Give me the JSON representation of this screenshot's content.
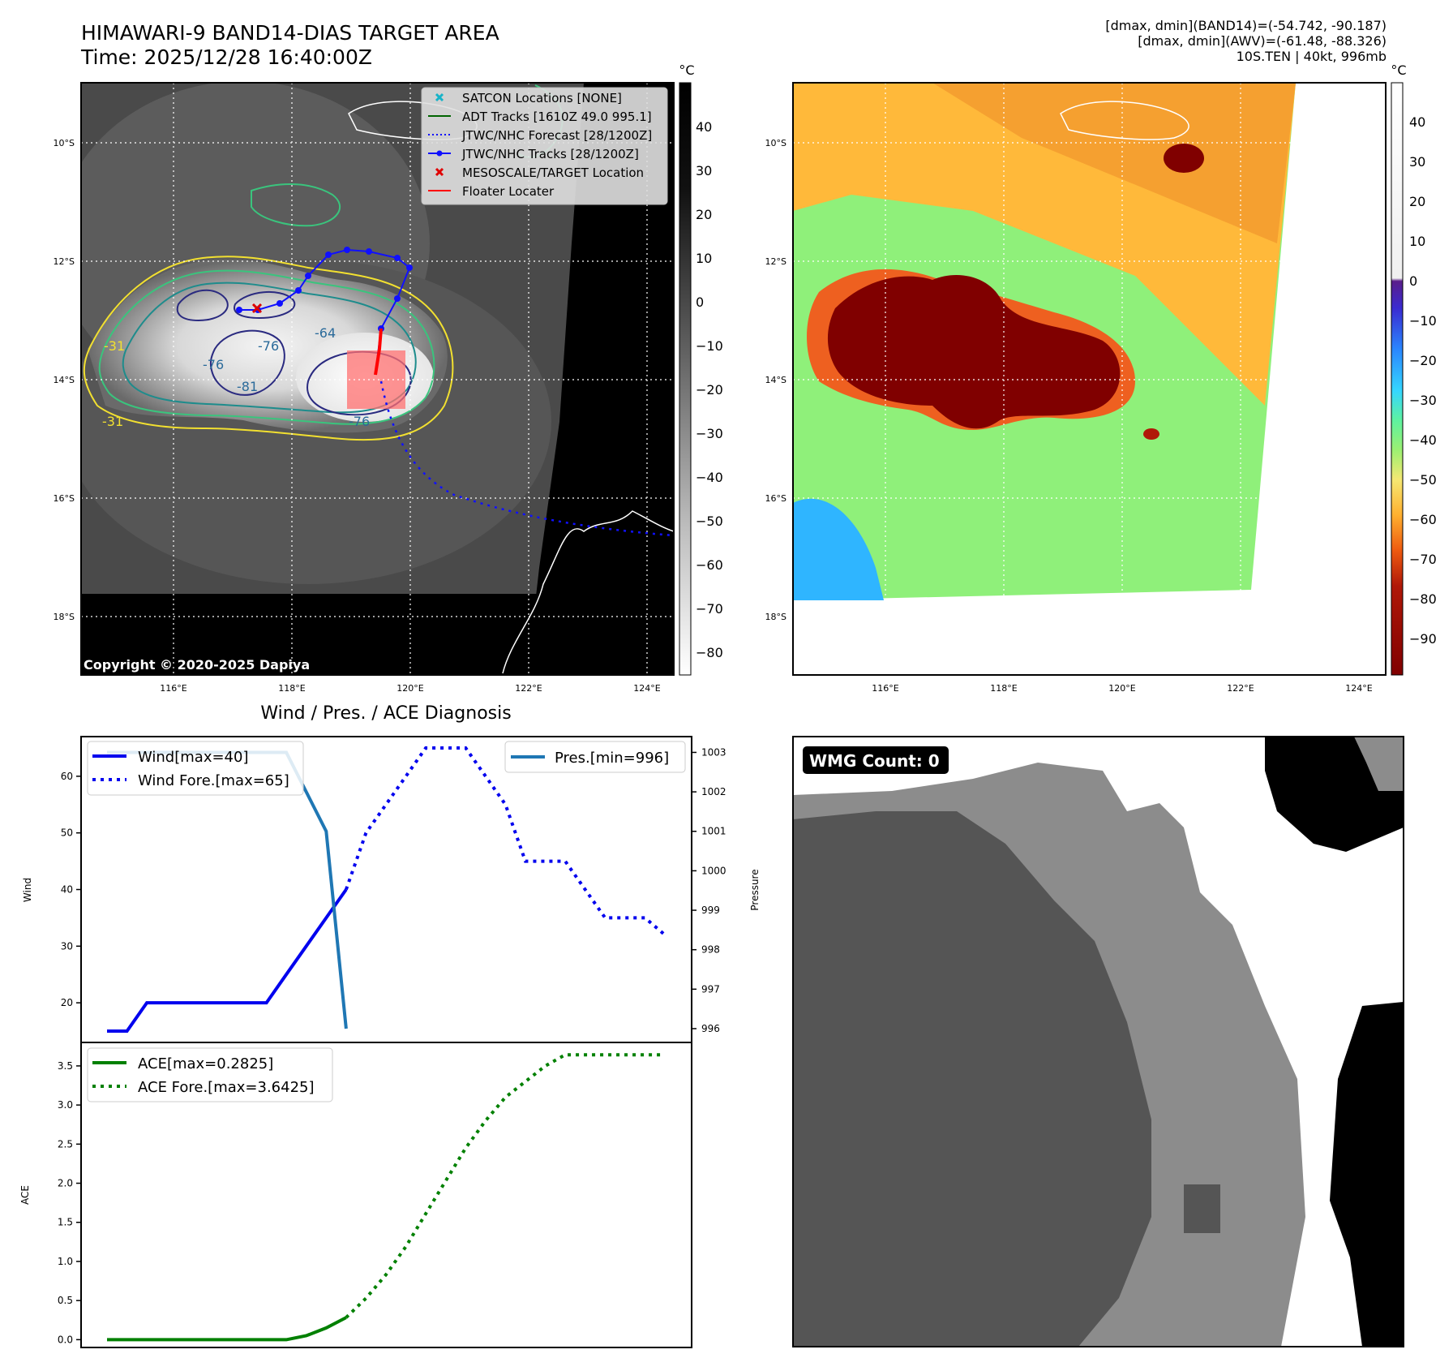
{
  "header": {
    "title_line1": "HIMAWARI-9 BAND14-DIAS TARGET AREA",
    "title_line2": "Time: 2025/12/28 16:40:00Z",
    "info_line1": "[dmax, dmin](BAND14)=(-54.742, -90.187)",
    "info_line2": "[dmax, dmin](AWV)=(-61.48, -88.326)",
    "info_line3": "10S.TEN | 40kt, 996mb"
  },
  "map_axes": {
    "lat_ticks": [
      "10°S",
      "12°S",
      "14°S",
      "16°S",
      "18°S"
    ],
    "lon_ticks": [
      "116°E",
      "118°E",
      "120°E",
      "122°E",
      "124°E"
    ],
    "copyright": "Copyright © 2020-2025 Dapiya",
    "contour_labels": [
      "-31",
      "-31",
      "-64",
      "-76",
      "-76",
      "-81",
      "-76"
    ]
  },
  "legend": {
    "items": [
      "SATCON Locations [NONE]",
      "ADT Tracks [1610Z 49.0 995.1]",
      "JTWC/NHC Forecast [28/1200Z]",
      "JTWC/NHC Tracks [28/1200Z]",
      "MESOSCALE/TARGET Location",
      "Floater Locater"
    ]
  },
  "colorbar_ir": {
    "unit": "°C",
    "ticks": [
      "40",
      "30",
      "20",
      "10",
      "0",
      "−10",
      "−20",
      "−30",
      "−40",
      "−50",
      "−60",
      "−70",
      "−80"
    ]
  },
  "colorbar_awv": {
    "unit": "°C",
    "ticks": [
      "40",
      "30",
      "20",
      "10",
      "0",
      "−10",
      "−20",
      "−30",
      "−40",
      "−50",
      "−60",
      "−70",
      "−80",
      "−90"
    ]
  },
  "wmg": {
    "label": "WMG Count: 0"
  },
  "colors": {
    "wind": "#0000ee",
    "pressure": "#1f77b4",
    "ace": "#008000",
    "contour_yellow": "#f2e030",
    "contour_green": "#3ac47d",
    "contour_teal": "#1e8c8c",
    "contour_navy": "#2a2a80"
  },
  "chart_data": [
    {
      "type": "line",
      "title": "Wind / Pres. / ACE Diagnosis",
      "ylabel": "Wind",
      "ylabel_right": "Pressure",
      "ylim": [
        13,
        67
      ],
      "ylim_right": [
        995.65,
        1003.4
      ],
      "yticks": [
        "20",
        "30",
        "40",
        "50",
        "60"
      ],
      "yticks_right": [
        "996",
        "997",
        "998",
        "999",
        "1000",
        "1001",
        "1002",
        "1003"
      ],
      "legend_left": [
        "Wind[max=40]",
        "Wind Fore.[max=65]"
      ],
      "legend_right": [
        "Pres.[min=996]"
      ],
      "x": [
        0,
        1,
        2,
        3,
        4,
        5,
        6,
        7,
        8,
        9,
        10,
        11,
        12,
        13,
        14,
        15,
        16,
        17,
        18,
        19,
        20,
        21,
        22,
        23,
        24,
        25,
        26,
        27,
        28
      ],
      "series": [
        {
          "name": "Wind[max=40]",
          "x": [
            0,
            1,
            2,
            3,
            4,
            5,
            6,
            7,
            8,
            9,
            10,
            11,
            12
          ],
          "values": [
            15,
            15,
            20,
            20,
            20,
            20,
            20,
            20,
            20,
            25,
            30,
            35,
            40
          ]
        },
        {
          "name": "Wind Fore.[max=65]",
          "x": [
            12,
            13,
            14,
            15,
            16,
            17,
            18,
            19,
            20,
            21,
            22,
            23,
            24,
            25,
            26,
            27,
            28
          ],
          "values": [
            40,
            50,
            55,
            60,
            65,
            65,
            65,
            60,
            55,
            45,
            45,
            45,
            40,
            35,
            35,
            35,
            32
          ]
        },
        {
          "name": "Pres.[min=996]",
          "axis": "right",
          "x": [
            0,
            1,
            2,
            3,
            4,
            5,
            6,
            7,
            8,
            9,
            10,
            11,
            12
          ],
          "values": [
            1003,
            1003,
            1003,
            1003,
            1003,
            1003,
            1003,
            1003,
            1003,
            1003,
            1002,
            1001,
            996
          ]
        }
      ]
    },
    {
      "type": "line",
      "ylabel": "ACE",
      "ylim": [
        -0.1,
        3.8
      ],
      "yticks": [
        "0.0",
        "0.5",
        "1.0",
        "1.5",
        "2.0",
        "2.5",
        "3.0",
        "3.5"
      ],
      "legend": [
        "ACE[max=0.2825]",
        "ACE Fore.[max=3.6425]"
      ],
      "series": [
        {
          "name": "ACE[max=0.2825]",
          "x": [
            0,
            1,
            2,
            3,
            4,
            5,
            6,
            7,
            8,
            9,
            10,
            11,
            12
          ],
          "values": [
            0,
            0,
            0,
            0,
            0,
            0,
            0,
            0,
            0,
            0,
            0.05,
            0.15,
            0.2825
          ]
        },
        {
          "name": "ACE Fore.[max=3.6425]",
          "x": [
            12,
            13,
            14,
            15,
            16,
            17,
            18,
            19,
            20,
            21,
            22,
            23,
            24,
            25,
            26,
            27,
            28
          ],
          "values": [
            0.2825,
            0.53,
            0.83,
            1.19,
            1.61,
            2.03,
            2.45,
            2.8,
            3.1,
            3.3,
            3.5,
            3.6425,
            3.6425,
            3.6425,
            3.6425,
            3.6425,
            3.6425
          ]
        }
      ]
    }
  ]
}
